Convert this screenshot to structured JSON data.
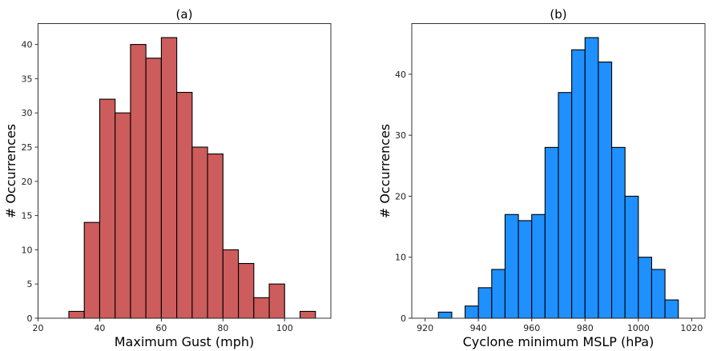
{
  "chart_data": [
    {
      "type": "bar",
      "title": "(a)",
      "xlabel": "Maximum Gust (mph)",
      "ylabel": "# Occurrences",
      "xlim": [
        20,
        115
      ],
      "ylim": [
        0,
        43.05
      ],
      "xticks": [
        20,
        40,
        60,
        80,
        100
      ],
      "yticks": [
        0,
        5,
        10,
        15,
        20,
        25,
        30,
        35,
        40
      ],
      "bin_edges": [
        30,
        35,
        40,
        45,
        50,
        55,
        60,
        65,
        70,
        75,
        80,
        85,
        90,
        95,
        100,
        105,
        110
      ],
      "values": [
        1,
        14,
        32,
        30,
        40,
        38,
        41,
        33,
        25,
        24,
        10,
        8,
        3,
        5,
        0,
        1
      ],
      "color": "#CD5C5C",
      "edgecolor": "#000000",
      "grid": false
    },
    {
      "type": "bar",
      "title": "(b)",
      "xlabel": "Cyclone minimum MSLP (hPa)",
      "ylabel": "# Occurrences",
      "xlim": [
        915,
        1025
      ],
      "ylim": [
        0,
        48.3
      ],
      "xticks": [
        920,
        940,
        960,
        980,
        1000,
        1020
      ],
      "yticks": [
        0,
        10,
        20,
        30,
        40
      ],
      "bin_edges": [
        925,
        930,
        935,
        940,
        945,
        950,
        955,
        960,
        965,
        970,
        975,
        980,
        985,
        990,
        995,
        1000,
        1005,
        1010,
        1015
      ],
      "values": [
        1,
        0,
        2,
        5,
        8,
        17,
        16,
        17,
        28,
        37,
        44,
        46,
        42,
        28,
        20,
        10,
        8,
        3
      ],
      "color": "#1E90FF",
      "edgecolor": "#000000",
      "grid": false
    }
  ]
}
